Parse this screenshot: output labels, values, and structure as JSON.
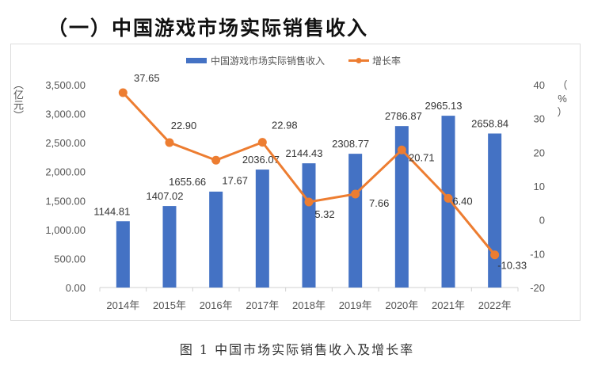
{
  "heading": "（一）中国游戏市场实际销售收入",
  "caption": "图 1 中国市场实际销售收入及增长率",
  "colors": {
    "bar": "#4472c4",
    "line": "#ed7d31"
  },
  "chart_data": {
    "type": "bar",
    "title": "",
    "categories": [
      "2014年",
      "2015年",
      "2016年",
      "2017年",
      "2018年",
      "2019年",
      "2020年",
      "2021年",
      "2022年"
    ],
    "series": [
      {
        "name": "中国游戏市场实际销售收入",
        "type": "bar",
        "axis": "left",
        "values": [
          1144.81,
          1407.02,
          1655.66,
          2036.07,
          2144.43,
          2308.77,
          2786.87,
          2965.13,
          2658.84
        ],
        "labels": [
          "1144.81",
          "1407.02",
          "1655.66",
          "2036.07",
          "2144.43",
          "2308.77",
          "2786.87",
          "2965.13",
          "2658.84"
        ]
      },
      {
        "name": "增长率",
        "type": "line",
        "axis": "right",
        "values": [
          37.65,
          22.9,
          17.67,
          22.98,
          5.32,
          7.66,
          20.71,
          6.4,
          -10.33
        ],
        "labels": [
          "37.65",
          "22.90",
          "17.67",
          "22.98",
          "5.32",
          "7.66",
          "20.71",
          "6.40",
          "-10.33"
        ]
      }
    ],
    "ylabel": "（亿元）",
    "y2label": "（%）",
    "ylim": [
      0,
      3500
    ],
    "y2lim": [
      -20,
      40
    ],
    "yticks": [
      "0.00",
      "500.00",
      "1,000.00",
      "1,500.00",
      "2,000.00",
      "2,500.00",
      "3,000.00",
      "3,500.00"
    ],
    "y2ticks": [
      "-20",
      "-10",
      "0",
      "10",
      "20",
      "30",
      "40"
    ],
    "legend": "top-center",
    "grid": false
  }
}
